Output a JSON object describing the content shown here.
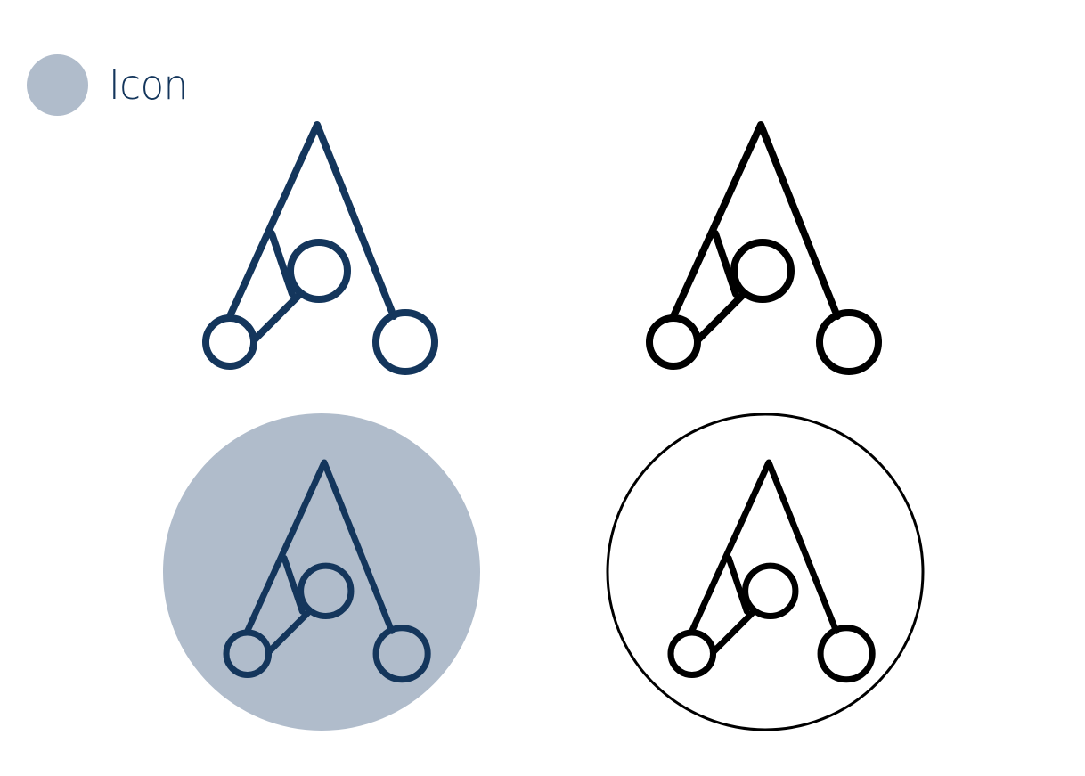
{
  "header": {
    "title": "Icon"
  },
  "colors": {
    "navy": "#14365c",
    "badge_bg": "#b0bccb",
    "black": "#000000",
    "white": "#ffffff"
  },
  "icons": [
    {
      "id": "navy-logo",
      "icon": "compass-a-icon",
      "color": "navy",
      "background": "none"
    },
    {
      "id": "black-logo",
      "icon": "compass-a-icon",
      "color": "black",
      "background": "none"
    },
    {
      "id": "navy-logo-badge",
      "icon": "compass-a-icon",
      "color": "navy",
      "background": "filled-circle"
    },
    {
      "id": "black-logo-badge",
      "icon": "compass-a-icon",
      "color": "black",
      "background": "outlined-circle"
    }
  ]
}
